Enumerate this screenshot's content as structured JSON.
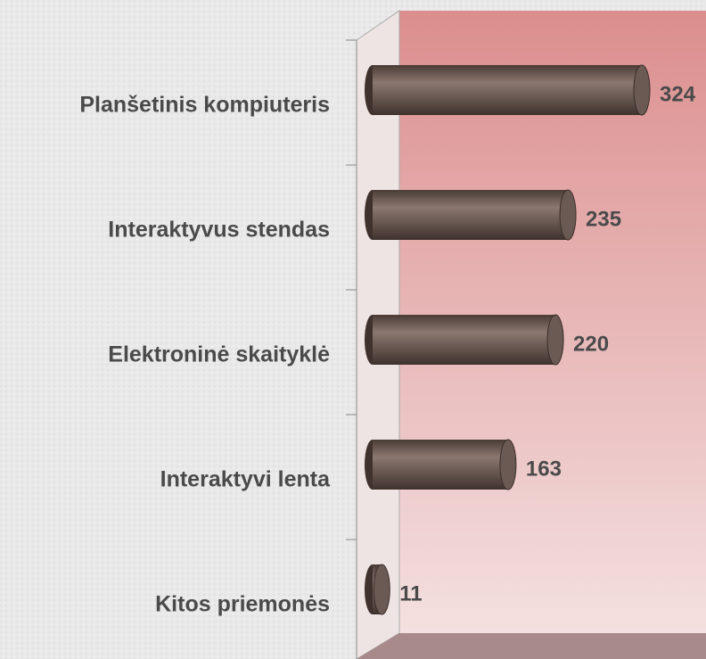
{
  "chart_data": {
    "type": "bar",
    "orientation": "horizontal",
    "categories": [
      "Planšetinis kompiuteris",
      "Interaktyvus stendas",
      "Elektroninė skaityklė",
      "Interaktyvi lenta",
      "Kitos priemonės"
    ],
    "values": [
      324,
      235,
      220,
      163,
      11
    ],
    "color": "#6b5a53"
  }
}
